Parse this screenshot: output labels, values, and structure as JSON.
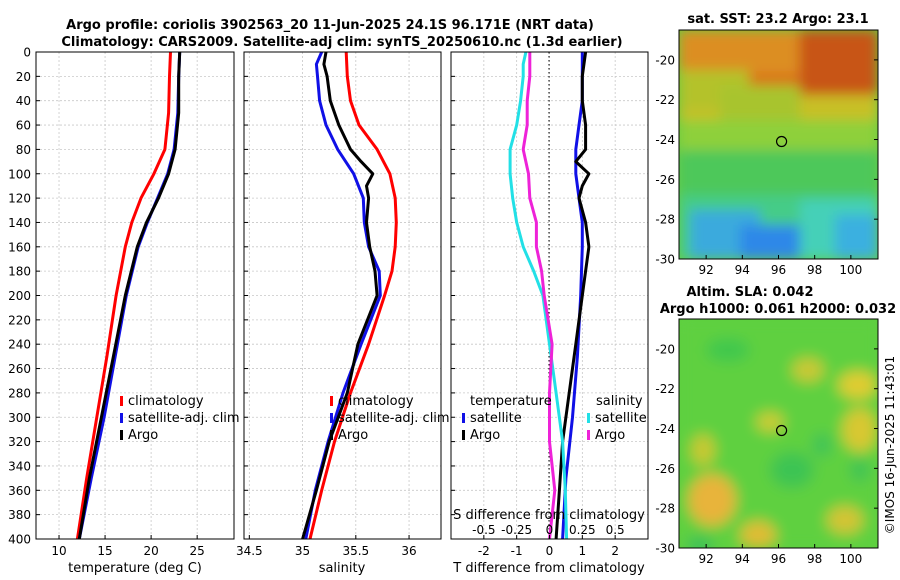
{
  "figure": {
    "title_line1": "Argo profile: coriolis 3902563_20 11-Jun-2025 24.1S 96.171E (NRT data)",
    "title_line2": "Climatology: CARS2009. Satellite-adj clim: synTS_20250610.nc (1.3d earlier)",
    "credit": "©IMOS 16-Jun-2025 11:43:01",
    "colors": {
      "red": "#ff0000",
      "blue": "#1010e6",
      "black": "#000000",
      "cyan": "#22e0e6",
      "magenta": "#ee22d8"
    }
  },
  "chart_data": [
    {
      "id": "temperature",
      "type": "line",
      "xlabel": "temperature (deg C)",
      "ylabel": "",
      "xlim": [
        7.5,
        29
      ],
      "ylim": [
        400,
        0
      ],
      "x_ticks": [
        10,
        15,
        20,
        25
      ],
      "x_tick_labels": [
        "10",
        "15",
        "20",
        "25"
      ],
      "y_ticks": [
        0,
        20,
        40,
        60,
        80,
        100,
        120,
        140,
        160,
        180,
        200,
        220,
        240,
        260,
        280,
        300,
        320,
        340,
        360,
        380,
        400
      ],
      "y_tick_labels": [
        "0",
        "20",
        "40",
        "60",
        "80",
        "100",
        "120",
        "140",
        "160",
        "180",
        "200",
        "220",
        "240",
        "260",
        "280",
        "300",
        "320",
        "340",
        "360",
        "380",
        "400"
      ],
      "grid": true,
      "legend": {
        "placement": "lower-right",
        "entries": [
          "climatology",
          "satellite-adj. clim",
          "Argo"
        ]
      },
      "series": [
        {
          "name": "climatology",
          "color": "red",
          "depth": [
            0,
            20,
            50,
            80,
            100,
            120,
            140,
            160,
            200,
            250,
            300,
            350,
            400
          ],
          "values": [
            22.1,
            22.0,
            21.9,
            21.5,
            20.3,
            18.9,
            17.9,
            17.2,
            16.2,
            15.2,
            14.1,
            13.0,
            12.0
          ]
        },
        {
          "name": "satellite-adj. clim",
          "color": "blue",
          "depth": [
            0,
            20,
            50,
            80,
            100,
            120,
            140,
            160,
            200,
            250,
            300,
            350,
            400
          ],
          "values": [
            23.1,
            23.0,
            22.9,
            22.5,
            21.8,
            20.7,
            19.6,
            18.6,
            17.3,
            16.1,
            14.9,
            13.5,
            12.2
          ]
        },
        {
          "name": "Argo",
          "color": "black",
          "depth": [
            0,
            20,
            50,
            80,
            100,
            120,
            140,
            160,
            200,
            250,
            300,
            350,
            400
          ],
          "values": [
            23.1,
            23.0,
            23.0,
            22.6,
            21.9,
            20.8,
            19.5,
            18.5,
            17.2,
            15.9,
            14.6,
            13.3,
            12.2
          ]
        }
      ]
    },
    {
      "id": "salinity",
      "type": "line",
      "xlabel": "salinity",
      "xlim": [
        34.45,
        36.3
      ],
      "ylim": [
        400,
        0
      ],
      "x_ticks": [
        34.5,
        35,
        35.5,
        36
      ],
      "x_tick_labels": [
        "34.5",
        "35",
        "35.5",
        "36"
      ],
      "y_ticks": [
        0,
        20,
        40,
        60,
        80,
        100,
        120,
        140,
        160,
        180,
        200,
        220,
        240,
        260,
        280,
        300,
        320,
        340,
        360,
        380,
        400
      ],
      "grid": true,
      "legend": {
        "placement": "lower-right",
        "entries": [
          "climatology",
          "satellite-adj. clim",
          "Argo"
        ]
      },
      "series": [
        {
          "name": "climatology",
          "color": "red",
          "depth": [
            0,
            20,
            40,
            60,
            80,
            100,
            120,
            140,
            160,
            180,
            200,
            240,
            280,
            320,
            360,
            400
          ],
          "values": [
            35.41,
            35.42,
            35.45,
            35.53,
            35.7,
            35.82,
            35.87,
            35.88,
            35.87,
            35.84,
            35.77,
            35.62,
            35.45,
            35.3,
            35.18,
            35.07
          ]
        },
        {
          "name": "satellite-adj. clim",
          "color": "blue",
          "depth": [
            0,
            10,
            20,
            40,
            60,
            80,
            100,
            120,
            140,
            160,
            180,
            200,
            240,
            280,
            320,
            360,
            400
          ],
          "values": [
            35.18,
            35.13,
            35.14,
            35.16,
            35.22,
            35.33,
            35.48,
            35.57,
            35.58,
            35.62,
            35.72,
            35.73,
            35.55,
            35.38,
            35.24,
            35.12,
            35.03
          ]
        },
        {
          "name": "Argo",
          "color": "black",
          "depth": [
            0,
            10,
            20,
            40,
            60,
            80,
            90,
            100,
            110,
            120,
            140,
            160,
            180,
            200,
            240,
            280,
            320,
            360,
            400
          ],
          "values": [
            35.22,
            35.2,
            35.23,
            35.26,
            35.34,
            35.45,
            35.55,
            35.66,
            35.6,
            35.62,
            35.6,
            35.63,
            35.68,
            35.7,
            35.52,
            35.42,
            35.25,
            35.13,
            35.0
          ]
        }
      ]
    },
    {
      "id": "difference",
      "type": "line",
      "xlabel": "T difference from climatology",
      "xlabel2": "S difference from climatology",
      "xlim": [
        -3,
        3
      ],
      "ylim": [
        400,
        0
      ],
      "x_ticks": [
        -2,
        -1,
        0,
        1,
        2
      ],
      "x_tick_labels": [
        "-2",
        "-1",
        "0",
        "1",
        "2"
      ],
      "s_ticks": [
        -0.5,
        -0.25,
        0,
        0.25,
        0.5
      ],
      "s_tick_labels": [
        "-0.5",
        "-0.25",
        "0",
        "0.25",
        "0.5"
      ],
      "y_ticks": [
        0,
        20,
        40,
        60,
        80,
        100,
        120,
        140,
        160,
        180,
        200,
        220,
        240,
        260,
        280,
        300,
        320,
        340,
        360,
        380,
        400
      ],
      "grid": true,
      "legend": {
        "placement": "lower",
        "temperature_title": "temperature",
        "salinity_title": "salinity",
        "temperature_entries": [
          "satellite",
          "Argo"
        ],
        "salinity_entries": [
          "satellite",
          "Argo"
        ]
      },
      "series": [
        {
          "name": "T satellite",
          "color": "blue",
          "depth": [
            0,
            20,
            40,
            60,
            80,
            100,
            120,
            140,
            160,
            200,
            250,
            300,
            350,
            400
          ],
          "values": [
            1.0,
            1.0,
            1.0,
            0.9,
            0.8,
            0.8,
            0.9,
            1.0,
            1.0,
            0.95,
            0.85,
            0.7,
            0.5,
            0.4
          ]
        },
        {
          "name": "T Argo",
          "color": "black",
          "depth": [
            0,
            20,
            40,
            60,
            80,
            90,
            100,
            110,
            120,
            140,
            160,
            180,
            200,
            240,
            280,
            320,
            360,
            400
          ],
          "values": [
            1.1,
            1.0,
            1.0,
            1.1,
            1.1,
            0.8,
            1.2,
            1.0,
            0.9,
            1.1,
            1.2,
            1.1,
            1.0,
            0.8,
            0.6,
            0.4,
            0.3,
            0.2
          ]
        },
        {
          "name": "S satellite",
          "color": "cyan",
          "depth": [
            0,
            10,
            20,
            40,
            60,
            80,
            100,
            120,
            140,
            160,
            180,
            200,
            240,
            280,
            320,
            360,
            400
          ],
          "values": [
            -0.18,
            -0.2,
            -0.2,
            -0.22,
            -0.25,
            -0.3,
            -0.3,
            -0.28,
            -0.25,
            -0.2,
            -0.12,
            -0.05,
            0.0,
            0.05,
            0.1,
            0.12,
            0.13
          ]
        },
        {
          "name": "S Argo",
          "color": "magenta",
          "depth": [
            0,
            10,
            20,
            40,
            60,
            80,
            100,
            120,
            140,
            160,
            180,
            200,
            240,
            280,
            320,
            360,
            400
          ],
          "values": [
            -0.15,
            -0.15,
            -0.15,
            -0.17,
            -0.17,
            -0.2,
            -0.16,
            -0.15,
            -0.1,
            -0.1,
            -0.06,
            -0.04,
            0.02,
            0.0,
            0.0,
            0.04,
            0.0
          ]
        }
      ]
    },
    {
      "id": "sst_map",
      "type": "heatmap",
      "title": "sat. SST: 23.2 Argo: 23.1",
      "xlim": [
        90.5,
        101.5
      ],
      "ylim": [
        -30,
        -18.5
      ],
      "x_ticks": [
        92,
        94,
        96,
        98,
        100
      ],
      "x_tick_labels": [
        "92",
        "94",
        "96",
        "98",
        "100"
      ],
      "y_ticks": [
        -20,
        -22,
        -24,
        -26,
        -28,
        -30
      ],
      "y_tick_labels": [
        "-20",
        "-22",
        "-24",
        "-26",
        "-28",
        "-30"
      ],
      "marker": {
        "lon": 96.17,
        "lat": -24.1
      }
    },
    {
      "id": "sla_map",
      "type": "heatmap",
      "title_line1": "Altim. SLA: 0.042",
      "title_line2": "Argo h1000: 0.061 h2000: 0.032",
      "xlim": [
        90.5,
        101.5
      ],
      "ylim": [
        -30,
        -18.5
      ],
      "x_ticks": [
        92,
        94,
        96,
        98,
        100
      ],
      "x_tick_labels": [
        "92",
        "94",
        "96",
        "98",
        "100"
      ],
      "y_ticks": [
        -20,
        -22,
        -24,
        -26,
        -28,
        -30
      ],
      "y_tick_labels": [
        "-20",
        "-22",
        "-24",
        "-26",
        "-28",
        "-30"
      ],
      "marker": {
        "lon": 96.17,
        "lat": -24.1
      }
    }
  ]
}
